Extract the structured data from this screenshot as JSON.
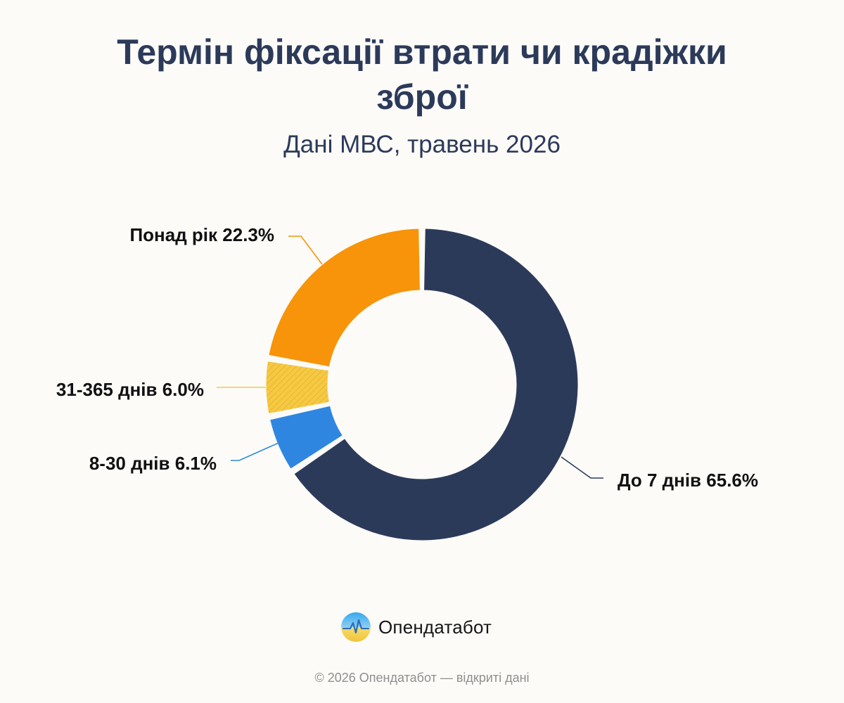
{
  "header": {
    "title_line1": "Термін фіксації втрати чи крадіжки",
    "title_line2": "зброї",
    "subtitle": "Дані МВС, травень 2026"
  },
  "chart_data": {
    "type": "pie",
    "variant": "donut",
    "title": "Термін фіксації втрати чи крадіжки зброї",
    "subtitle": "Дані МВС, травень 2026",
    "slices": [
      {
        "label": "До 7 днів",
        "value": 65.6,
        "display": "До 7 днів 65.6%",
        "color": "#2c3a5a",
        "hatched": false
      },
      {
        "label": "8-30 днів",
        "value": 6.1,
        "display": "8-30 днів 6.1%",
        "color": "#2f86e0",
        "hatched": false
      },
      {
        "label": "31-365 днів",
        "value": 6.0,
        "display": "31-365 днів 6.0%",
        "color": "#f6c944",
        "hatched": true
      },
      {
        "label": "Понад рік",
        "value": 22.3,
        "display": "Понад рік 22.3%",
        "color": "#f7940a",
        "hatched": false
      }
    ],
    "start_angle_deg": 0,
    "direction": "clockwise",
    "legend": "none",
    "labels": "outside-with-leader-lines"
  },
  "branding": {
    "logo_icon": "opendatabot-logo-icon",
    "name": "Опендатабот"
  },
  "footer": {
    "text": "© 2026 Опендатабот — відкриті дані"
  }
}
